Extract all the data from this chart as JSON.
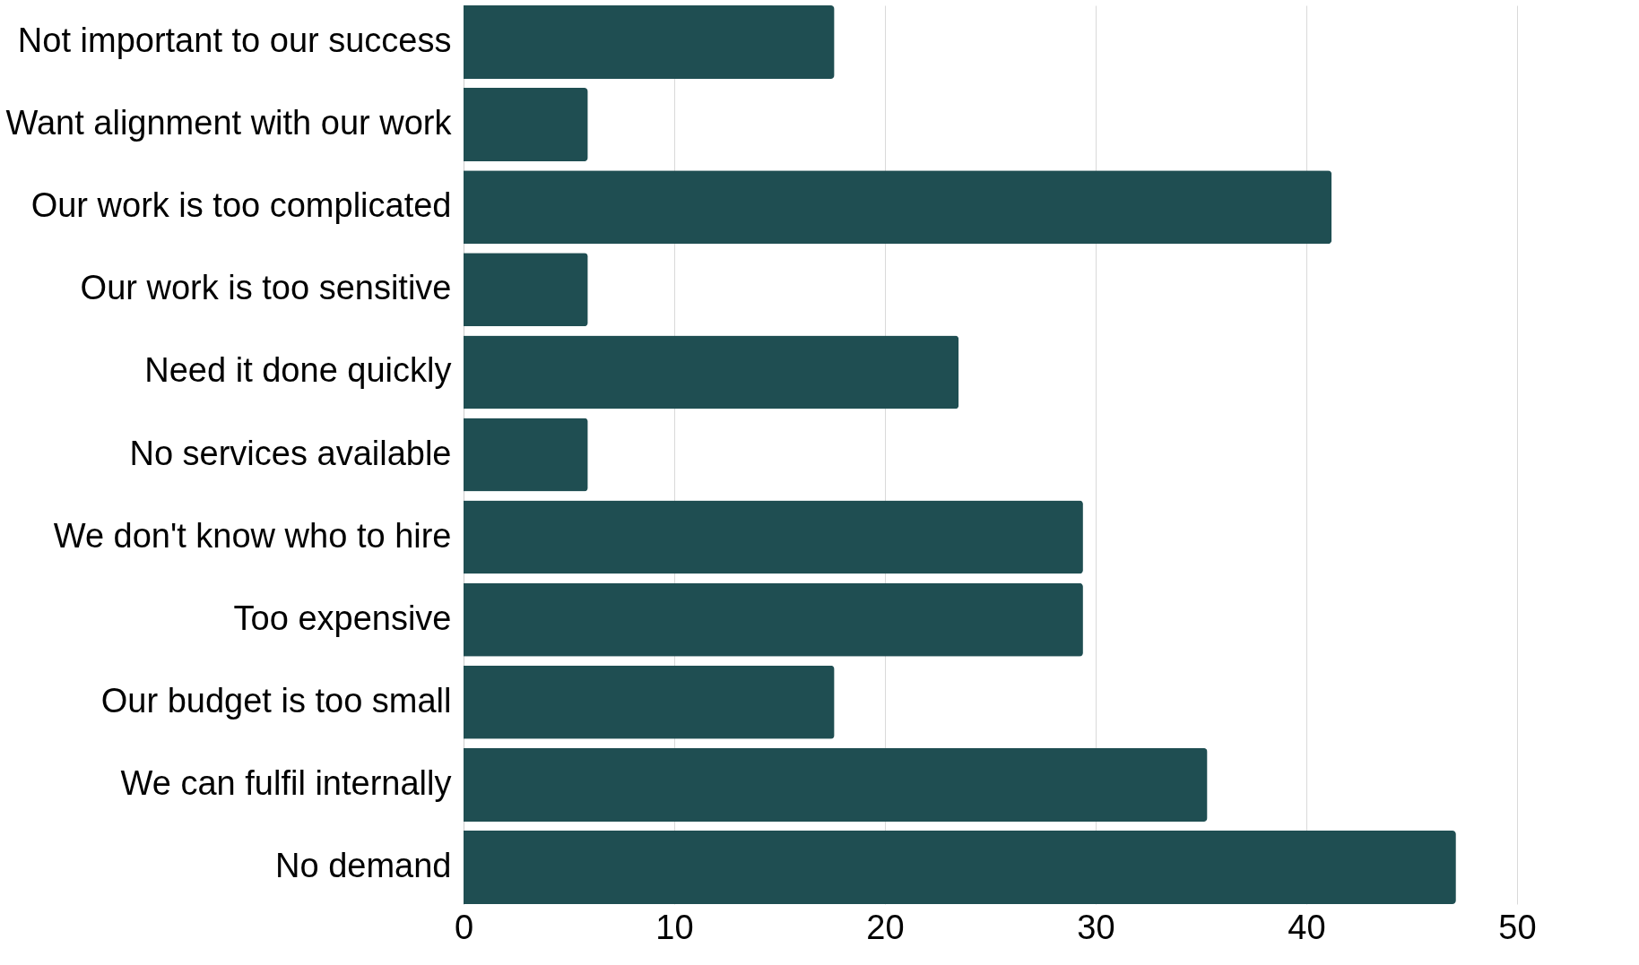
{
  "chart_data": {
    "type": "bar",
    "orientation": "horizontal",
    "categories": [
      "Not important to our success",
      "Want alignment with our work",
      "Our work is too complicated",
      "Our work is too sensitive",
      "Need it done quickly",
      "No services available",
      "We don't know who to hire",
      "Too expensive",
      "Our budget is too small",
      "We can fulfil internally",
      "No demand"
    ],
    "values": [
      17.6,
      5.9,
      41.2,
      5.9,
      23.5,
      5.9,
      29.4,
      29.4,
      17.6,
      35.3,
      47.1
    ],
    "color": "#1f4e52",
    "xlim": [
      0,
      50
    ],
    "xticks": [
      0,
      10,
      20,
      30,
      40,
      50
    ],
    "grid": "x"
  }
}
